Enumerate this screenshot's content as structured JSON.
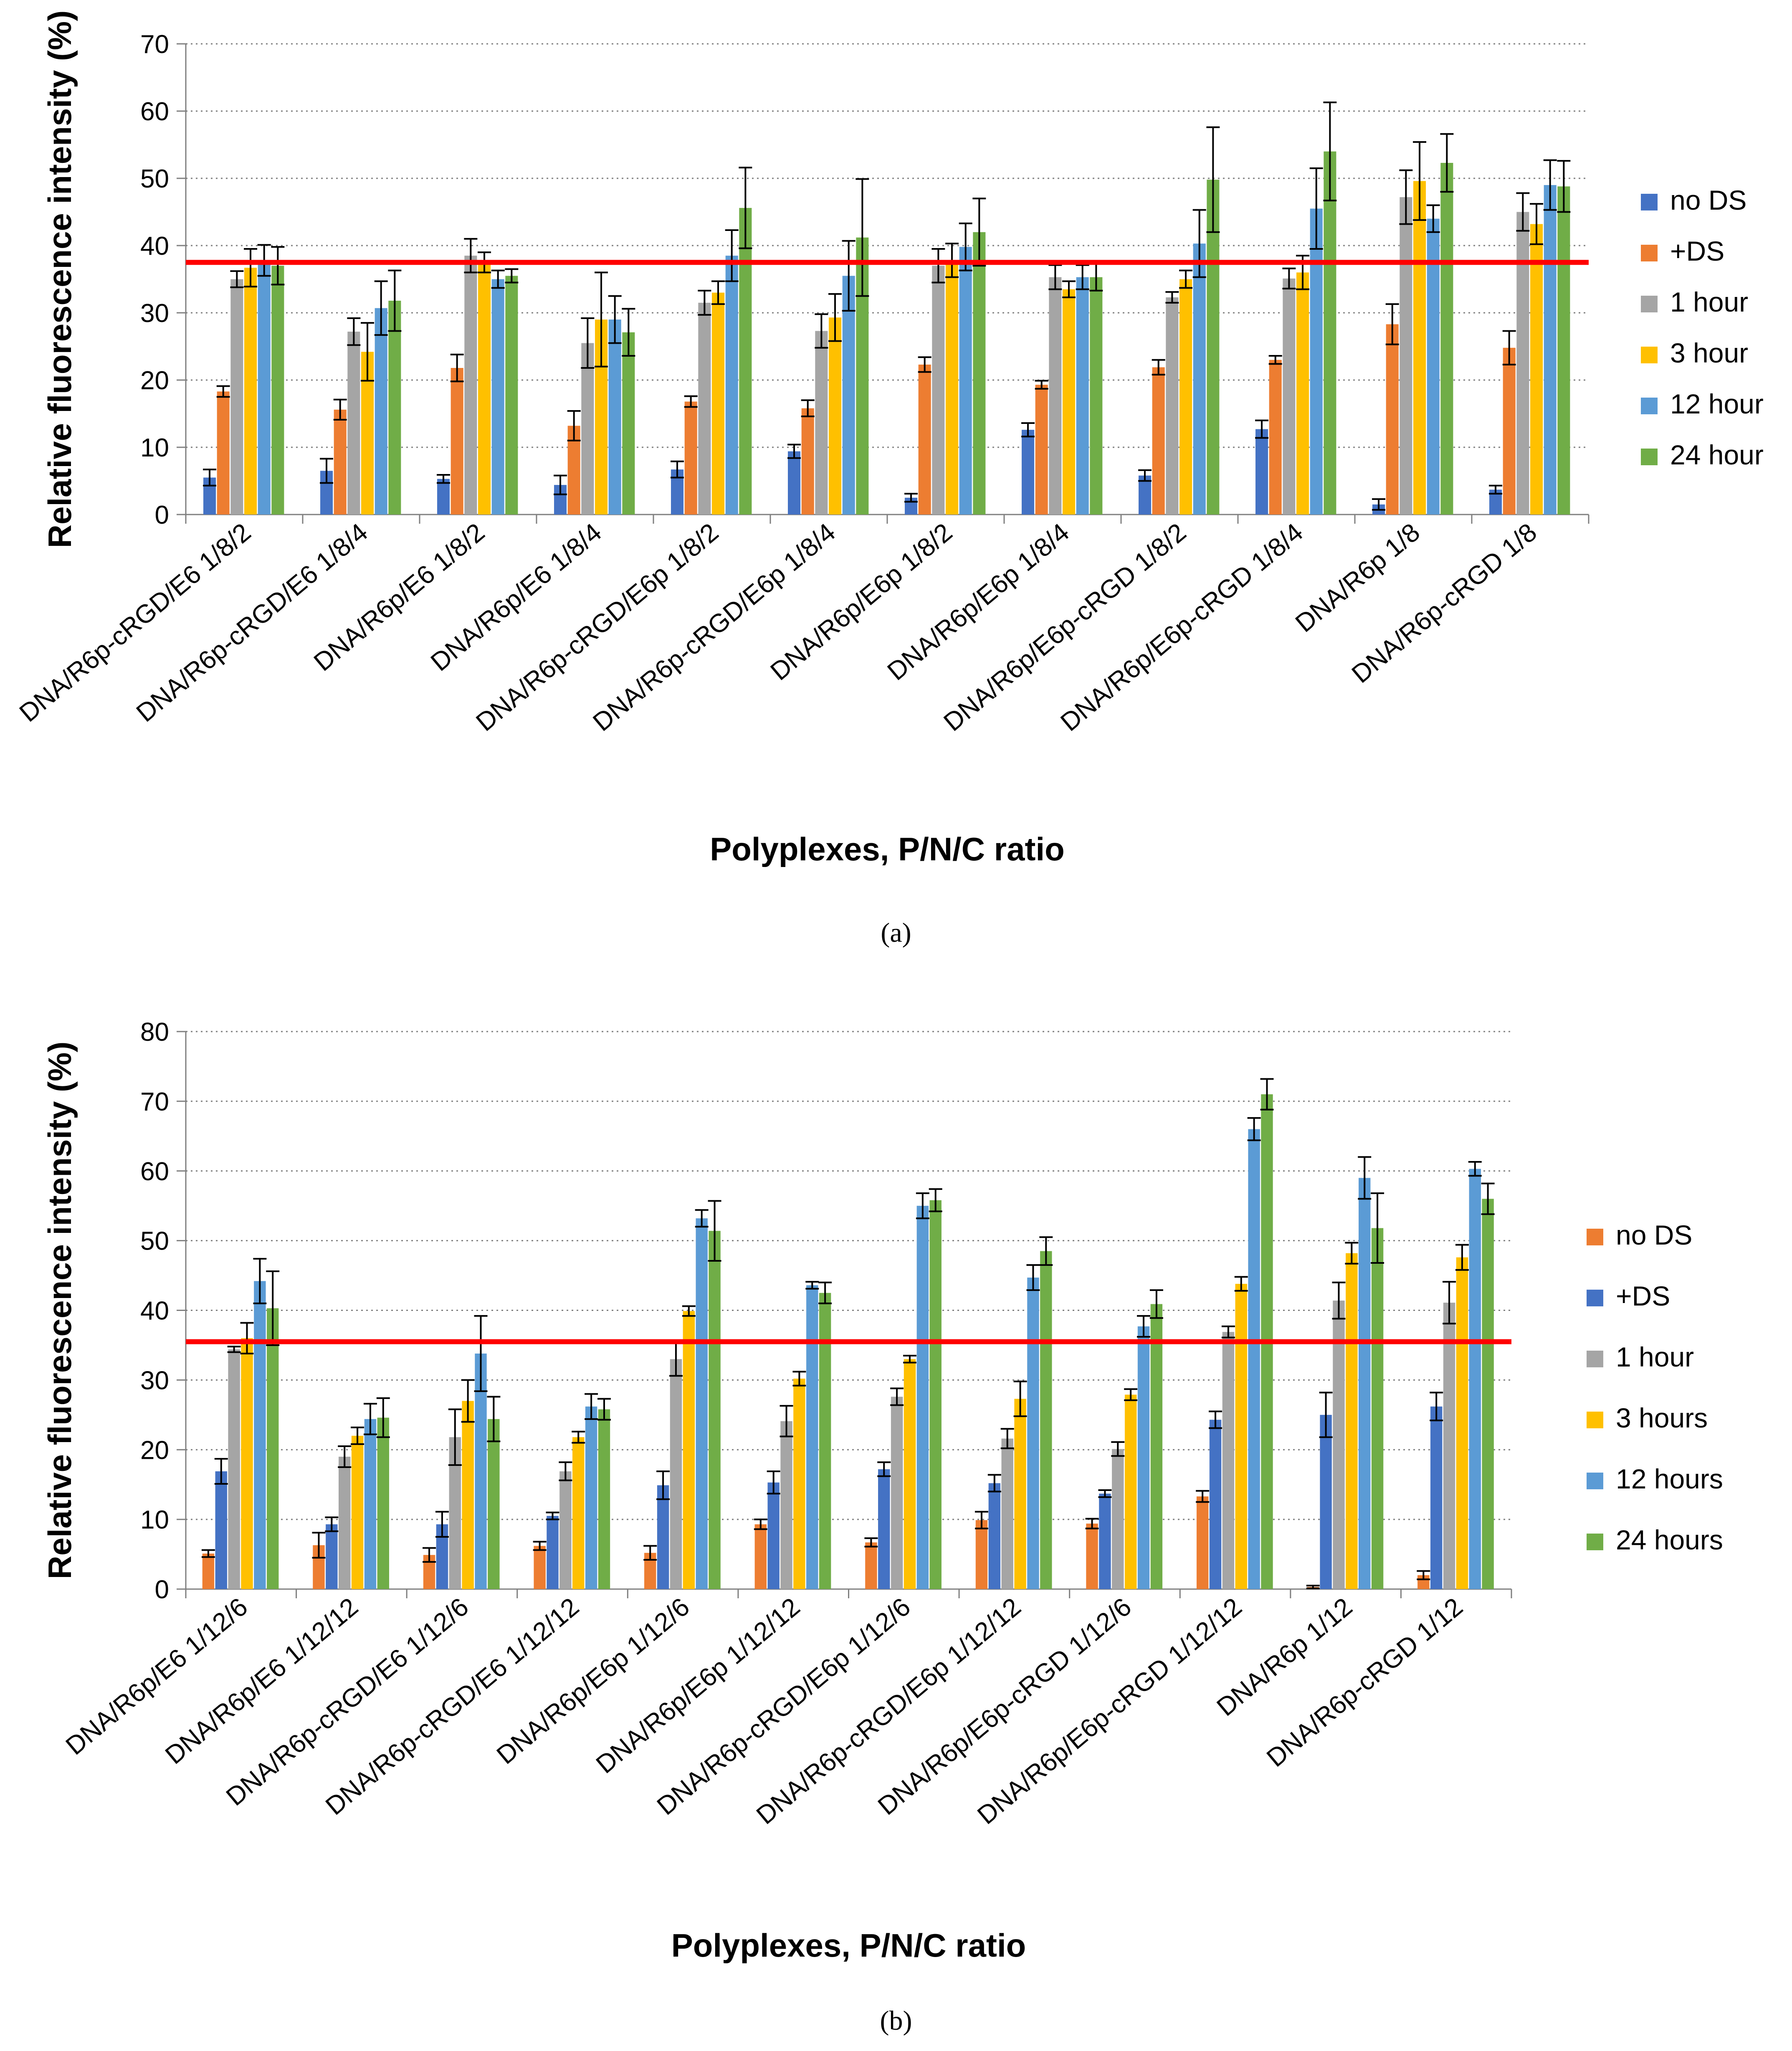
{
  "chart_data": [
    {
      "type": "bar",
      "panel_label": "(a)",
      "title": "",
      "xlabel": "Polyplexes, P/N/C ratio",
      "ylabel": "Relative fluorescence intensity (%)",
      "ylim": [
        0,
        70
      ],
      "yticks": [
        0,
        10,
        20,
        30,
        40,
        50,
        60,
        70
      ],
      "grid": true,
      "legend_position": "right",
      "reference_line": {
        "value": 37.5,
        "color": "#ff0000"
      },
      "categories": [
        "DNA/R6p-cRGD/E6 1/8/2",
        "DNA/R6p-cRGD/E6 1/8/4",
        "DNA/R6p/E6 1/8/2",
        "DNA/R6p/E6 1/8/4",
        "DNA/R6p-cRGD/E6p 1/8/2",
        "DNA/R6p-cRGD/E6p 1/8/4",
        "DNA/R6p/E6p 1/8/2",
        "DNA/R6p/E6p 1/8/4",
        "DNA/R6p/E6p-cRGD 1/8/2",
        "DNA/R6p/E6p-cRGD 1/8/4",
        "DNA/R6p 1/8",
        "DNA/R6p-cRGD 1/8"
      ],
      "series": [
        {
          "name": "no DS",
          "color": "#4472c4",
          "values": [
            5.5,
            6.5,
            5.3,
            4.4,
            6.7,
            9.4,
            2.5,
            12.6,
            5.8,
            12.7,
            1.5,
            3.7
          ],
          "errors": [
            1.2,
            1.8,
            0.6,
            1.4,
            1.2,
            1.0,
            0.6,
            1.0,
            0.8,
            1.3,
            0.8,
            0.6
          ]
        },
        {
          "name": "+DS",
          "color": "#ed7d31",
          "values": [
            18.3,
            15.6,
            21.8,
            13.2,
            16.8,
            15.8,
            22.3,
            19.3,
            21.9,
            23.0,
            28.3,
            24.8
          ],
          "errors": [
            0.8,
            1.5,
            2.0,
            2.2,
            0.8,
            1.2,
            1.1,
            0.6,
            1.1,
            0.6,
            3.0,
            2.5
          ]
        },
        {
          "name": "1 hour",
          "color": "#a5a5a5",
          "values": [
            35.0,
            27.2,
            38.5,
            25.5,
            31.5,
            27.3,
            37.0,
            35.3,
            32.3,
            35.1,
            47.2,
            45.0
          ],
          "errors": [
            1.2,
            2.0,
            2.5,
            3.7,
            1.8,
            2.5,
            2.5,
            1.8,
            0.8,
            1.5,
            4.0,
            2.8
          ]
        },
        {
          "name": "3 hour",
          "color": "#ffc000",
          "values": [
            36.7,
            24.2,
            37.5,
            29.0,
            33.0,
            29.3,
            37.8,
            33.5,
            35.0,
            36.0,
            49.6,
            43.2
          ],
          "errors": [
            2.8,
            4.3,
            1.5,
            7.0,
            1.7,
            3.5,
            2.5,
            1.2,
            1.3,
            2.5,
            5.8,
            3.0
          ]
        },
        {
          "name": "12 hour",
          "color": "#5b9bd5",
          "values": [
            37.8,
            30.7,
            35.0,
            29.0,
            38.5,
            35.5,
            39.8,
            35.3,
            40.3,
            45.5,
            44.0,
            49.0
          ],
          "errors": [
            2.3,
            4.0,
            1.3,
            3.5,
            3.8,
            5.2,
            3.5,
            1.8,
            5.0,
            6.0,
            2.0,
            3.7
          ]
        },
        {
          "name": "24 hour",
          "color": "#70ad47",
          "values": [
            37.0,
            31.8,
            35.5,
            27.1,
            45.6,
            41.2,
            42.0,
            35.3,
            49.8,
            54.0,
            52.3,
            48.8
          ],
          "errors": [
            2.8,
            4.5,
            1.0,
            3.5,
            6.0,
            8.7,
            5.0,
            2.0,
            7.8,
            7.3,
            4.3,
            3.8
          ]
        }
      ]
    },
    {
      "type": "bar",
      "panel_label": "(b)",
      "title": "",
      "xlabel": "Polyplexes, P/N/C ratio",
      "ylabel": "Relative fluorescence intensity (%)",
      "ylim": [
        0,
        80
      ],
      "yticks": [
        0,
        10,
        20,
        30,
        40,
        50,
        60,
        70,
        80
      ],
      "grid": true,
      "legend_position": "right",
      "reference_line": {
        "value": 35.5,
        "color": "#ff0000"
      },
      "categories": [
        "DNA/R6p/E6 1/12/6",
        "DNA/R6p/E6 1/12/12",
        "DNA/R6p-cRGD/E6 1/12/6",
        "DNA/R6p-cRGD/E6 1/12/12",
        "DNA/R6p/E6p 1/12/6",
        "DNA/R6p/E6p 1/12/12",
        "DNA/R6p-cRGD/E6p 1/12/6",
        "DNA/R6p-cRGD/E6p 1/12/12",
        "DNA/R6p/E6p-cRGD 1/12/6",
        "DNA/R6p/E6p-cRGD 1/12/12",
        "DNA/R6p 1/12",
        "DNA/R6p-cRGD 1/12"
      ],
      "series": [
        {
          "name": "no DS",
          "color": "#ed7d31",
          "values": [
            5.1,
            6.3,
            4.9,
            6.2,
            5.2,
            9.3,
            6.7,
            9.9,
            9.4,
            13.3,
            0.3,
            2.0
          ],
          "errors": [
            0.5,
            1.8,
            1.0,
            0.6,
            1.0,
            0.7,
            0.6,
            1.2,
            0.7,
            0.8,
            0.2,
            0.6
          ]
        },
        {
          "name": "+DS",
          "color": "#4472c4",
          "values": [
            16.9,
            9.3,
            9.3,
            10.5,
            14.9,
            15.3,
            17.2,
            15.2,
            13.7,
            24.3,
            25.0,
            26.2
          ],
          "errors": [
            1.8,
            1.0,
            1.8,
            0.5,
            2.0,
            1.6,
            1.0,
            1.2,
            0.5,
            1.2,
            3.2,
            2.0
          ]
        },
        {
          "name": "1 hour",
          "color": "#a5a5a5",
          "values": [
            34.4,
            19.0,
            21.8,
            16.9,
            33.0,
            24.1,
            27.6,
            21.6,
            20.1,
            36.9,
            41.4,
            41.1
          ],
          "errors": [
            0.4,
            1.5,
            4.0,
            1.3,
            2.4,
            2.2,
            1.2,
            1.4,
            1.0,
            0.8,
            2.6,
            3.0
          ]
        },
        {
          "name": "3 hours",
          "color": "#ffc000",
          "values": [
            36.0,
            22.0,
            27.0,
            21.8,
            39.9,
            30.2,
            33.0,
            27.3,
            27.9,
            43.8,
            48.2,
            47.6
          ],
          "errors": [
            2.2,
            1.2,
            3.0,
            0.8,
            0.7,
            1.0,
            0.5,
            2.5,
            0.8,
            1.0,
            1.5,
            1.8
          ]
        },
        {
          "name": "12 hours",
          "color": "#5b9bd5",
          "values": [
            44.2,
            24.4,
            33.8,
            26.2,
            53.2,
            43.6,
            55.0,
            44.7,
            37.7,
            66.0,
            59.0,
            60.3
          ],
          "errors": [
            3.2,
            2.2,
            5.4,
            1.8,
            1.2,
            0.5,
            1.8,
            1.8,
            1.5,
            1.6,
            3.0,
            1.0
          ]
        },
        {
          "name": "24 hours",
          "color": "#70ad47",
          "values": [
            40.3,
            24.6,
            24.4,
            25.8,
            51.4,
            42.5,
            55.8,
            48.5,
            40.9,
            71.0,
            51.8,
            56.0
          ],
          "errors": [
            5.3,
            2.8,
            3.2,
            1.5,
            4.3,
            1.5,
            1.6,
            2.0,
            2.0,
            2.2,
            5.0,
            2.2
          ]
        }
      ]
    }
  ]
}
